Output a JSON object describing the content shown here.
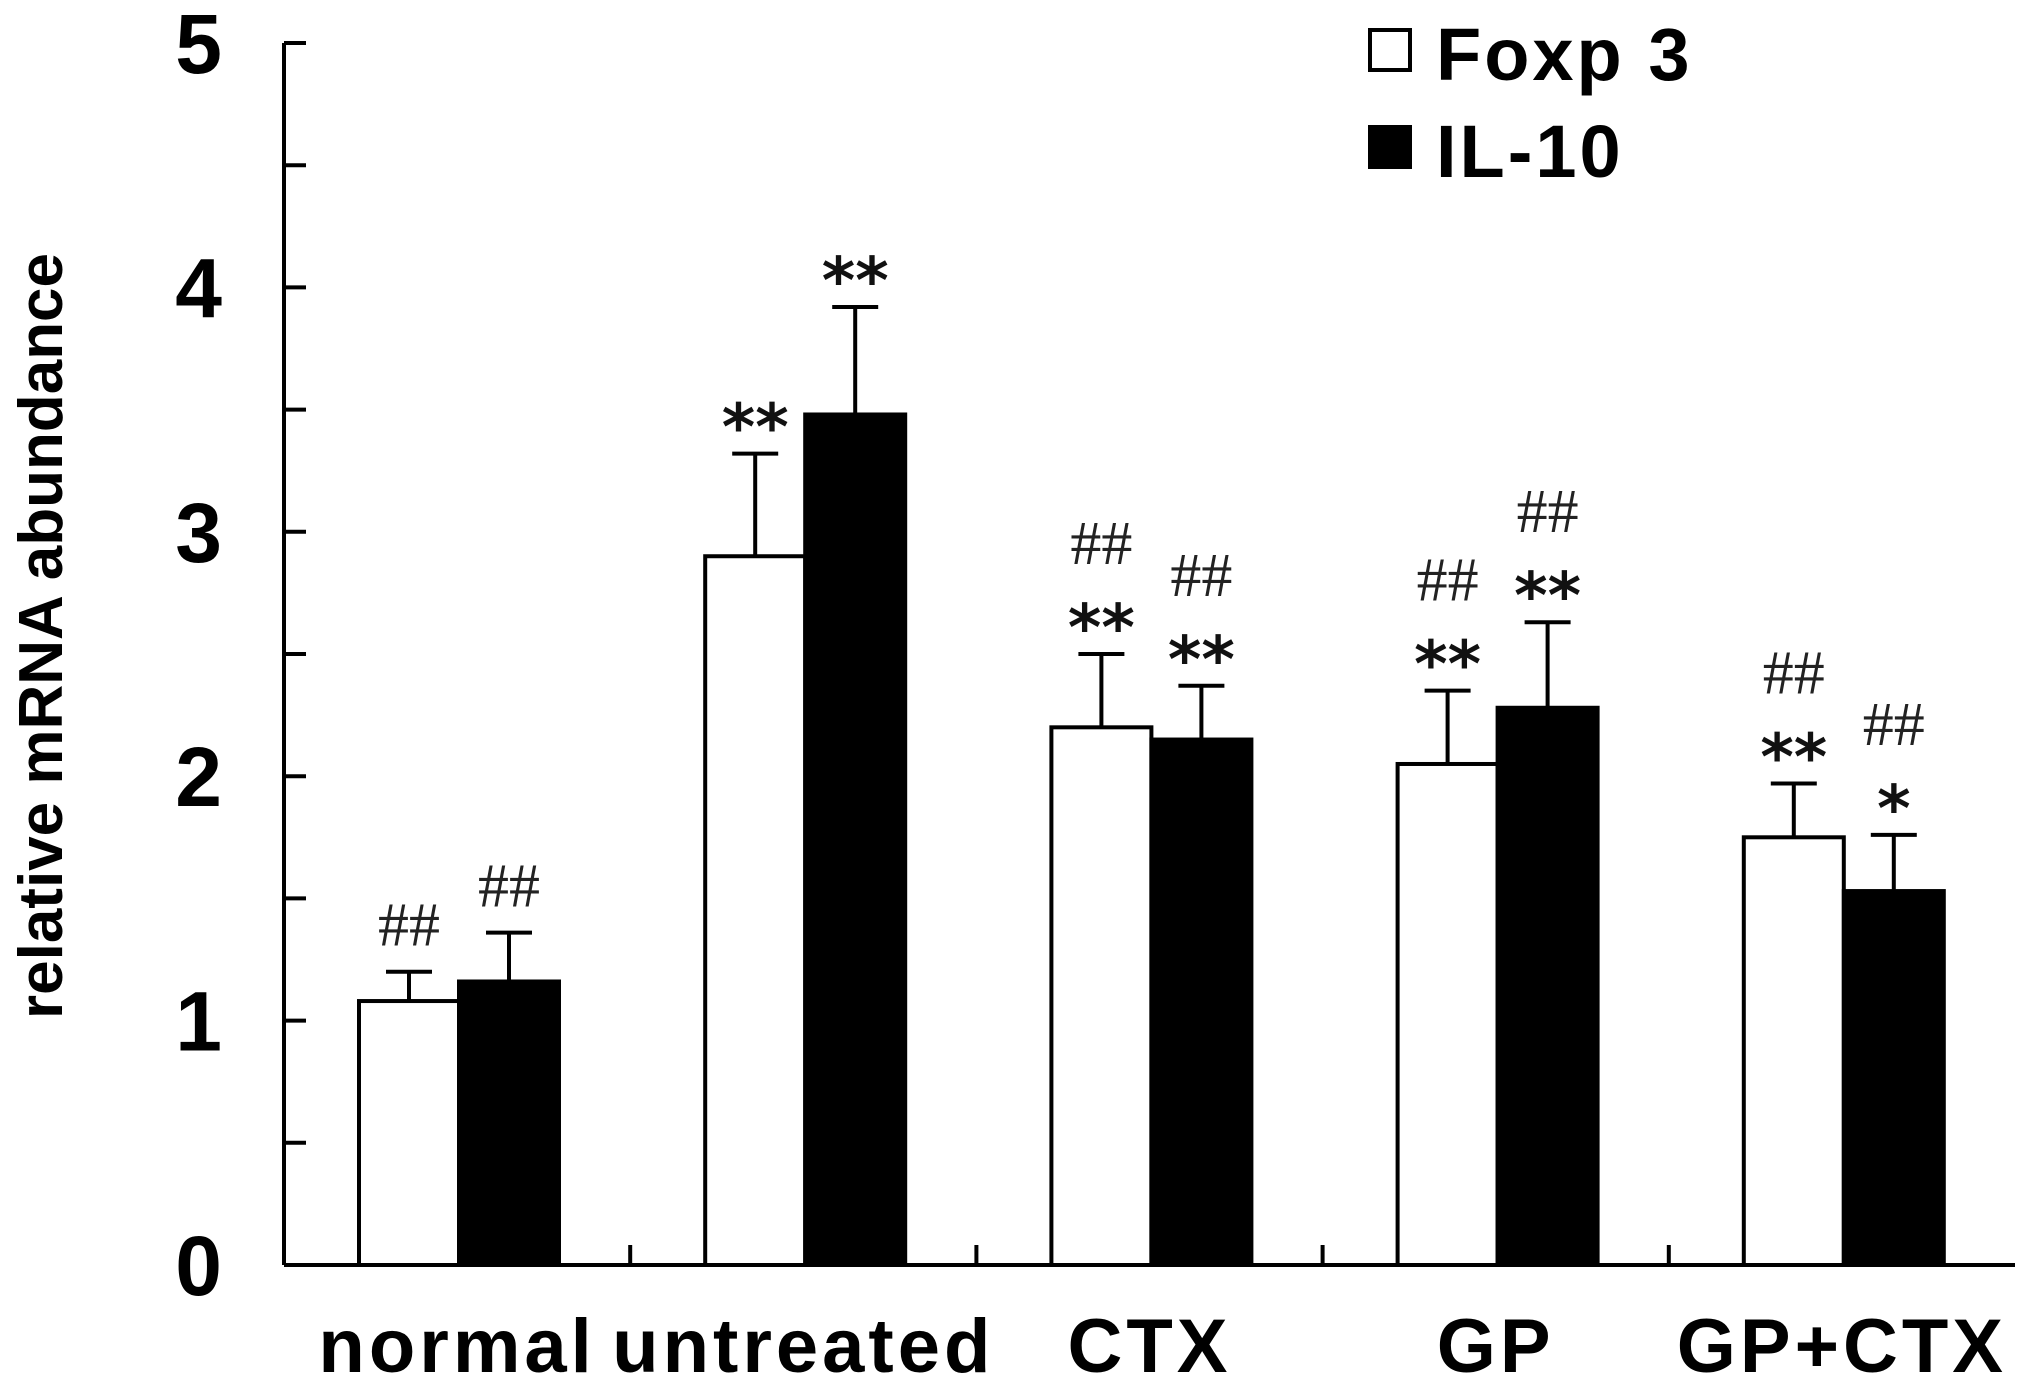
{
  "chart_data": {
    "type": "bar",
    "title": "",
    "xlabel": "",
    "ylabel": "relative mRNA abundance",
    "ylim": [
      0,
      5
    ],
    "yticks": [
      0,
      1,
      2,
      3,
      4,
      5
    ],
    "minor_ticks": [
      0.5,
      1.5,
      2.5,
      3.5,
      4.5
    ],
    "grid": false,
    "legend_position": "top-right",
    "categories": [
      "normal",
      "untreated",
      "CTX",
      "GP",
      "GP+CTX"
    ],
    "series": [
      {
        "name": "Foxp 3",
        "fill": "#ffffff",
        "values": [
          1.08,
          2.9,
          2.2,
          2.05,
          1.75
        ],
        "errors": [
          0.12,
          0.42,
          0.3,
          0.3,
          0.22
        ],
        "annotations": [
          [
            "##"
          ],
          [
            "**"
          ],
          [
            "##",
            "**"
          ],
          [
            "##",
            "**"
          ],
          [
            "##",
            "**"
          ]
        ]
      },
      {
        "name": "IL-10",
        "fill": "#000000",
        "values": [
          1.16,
          3.48,
          2.15,
          2.28,
          1.53
        ],
        "errors": [
          0.2,
          0.44,
          0.22,
          0.35,
          0.23
        ],
        "annotations": [
          [
            "##"
          ],
          [
            "**"
          ],
          [
            "##",
            "**"
          ],
          [
            "##",
            "**"
          ],
          [
            "##",
            "*"
          ]
        ]
      }
    ]
  }
}
